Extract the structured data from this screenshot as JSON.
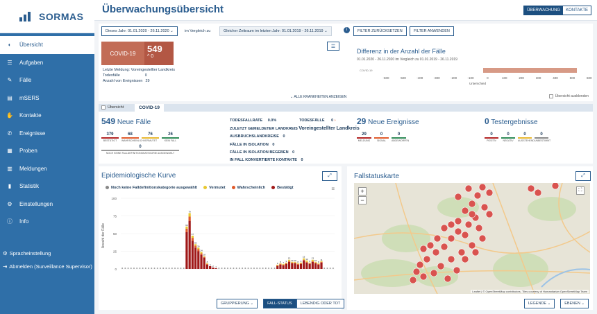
{
  "app": {
    "name": "SORMAS"
  },
  "header": {
    "title": "Überwachungsübersicht",
    "toggle_surveillance": "ÜBERWACHUNG",
    "toggle_contacts": "KONTAKTE"
  },
  "sidebar": {
    "items": [
      {
        "label": "Übersicht",
        "icon": "speedometer-icon"
      },
      {
        "label": "Aufgaben",
        "icon": "list-icon"
      },
      {
        "label": "Fälle",
        "icon": "edit-icon"
      },
      {
        "label": "mSERS",
        "icon": "document-icon"
      },
      {
        "label": "Kontakte",
        "icon": "hand-icon"
      },
      {
        "label": "Ereignisse",
        "icon": "phone-icon"
      },
      {
        "label": "Proben",
        "icon": "database-icon"
      },
      {
        "label": "Meldungen",
        "icon": "file-icon"
      },
      {
        "label": "Statistik",
        "icon": "bar-chart-icon"
      },
      {
        "label": "Einstellungen",
        "icon": "gears-icon"
      },
      {
        "label": "Info",
        "icon": "info-icon"
      }
    ],
    "language": "Spracheinstellung",
    "logout": "Abmelden (Surveillance Supervisor)"
  },
  "filters": {
    "period": "Dieses Jahr: 01.01.2020 - 26.11.2020",
    "compare_label": "im Vergleich zu",
    "compare_period": "Gleicher Zeitraum im letzten Jahr: 01.01.2019 - 26.11.2019",
    "reset": "FILTER ZURÜCKSETZEN",
    "apply": "FILTER ANWENDEN"
  },
  "covid_card": {
    "label": "COVID-19",
    "count": "549",
    "change": "^ 0",
    "last_report_label": "Letzte Meldung: Voreingestellter Landkreis",
    "deaths_label": "Todesfälle",
    "deaths": "0",
    "events_label": "Anzahl von Ereignissen",
    "events": "29"
  },
  "difference": {
    "title": "Differenz in der Anzahl der Fälle",
    "subtitle": "01.01.2020 - 26.11.2020 im Vergleich zu 01.01.2019 - 26.11.2019",
    "row_label": "COVID-19",
    "axis_label": "Unterschied",
    "ticks": [
      "-600",
      "-500",
      "-400",
      "-300",
      "-200",
      "-100",
      "0",
      "100",
      "200",
      "300",
      "400",
      "500",
      "600"
    ],
    "value": 549,
    "hide_label": "Übersicht ausblenden"
  },
  "show_more": "ALLE KRANKHEITEN ANZEIGEN",
  "tabs": {
    "disease_label": "Übersicht",
    "active": "COVID-19"
  },
  "stats": {
    "new_cases": {
      "count": "549",
      "label": "Neue Fälle",
      "items": [
        {
          "v": "379",
          "l": "BESTÄTIGT",
          "c": "#b22222"
        },
        {
          "v": "68",
          "l": "WAHRSCHEINLICH",
          "c": "#e05a2a"
        },
        {
          "v": "76",
          "l": "VERMUTET",
          "c": "#e8b830"
        },
        {
          "v": "26",
          "l": "KEIN FALL",
          "c": "#2e8b57"
        }
      ],
      "extra": {
        "v": "0",
        "l": "NOCH KEINE FALLDEFINITIONSKATEGORIE AUSGEWÄHLT"
      }
    },
    "fatality_label": "TODESFALLRATE",
    "fatality": "0.0%",
    "deaths_label": "TODESFÄLLE",
    "deaths": "0",
    "last_district_label": "ZULETZT GEMELDETER LANDKREIS",
    "last_district": "Voreingestellter Landkreis",
    "outbreak_label": "AUSBRUCHSLANDKREISE",
    "outbreak": "0",
    "isolation_label": "FÄLLE IN ISOLATION",
    "isolation": "0",
    "iso_ended_label": "FÄLLE IN ISOLATION BEGEBEN",
    "iso_ended": "0",
    "converted_label": "IN FALL KONVERTIERTE KONTAKTE",
    "converted": "0",
    "new_events": {
      "count": "29",
      "label": "Neue Ereignisse",
      "items": [
        {
          "v": "29",
          "l": "MELDUNG",
          "c": "#b22222"
        },
        {
          "v": "0",
          "l": "SIGNAL",
          "c": "#e05a2a"
        },
        {
          "v": "0",
          "l": "ABGEWORFEN",
          "c": "#2e8b57"
        }
      ]
    },
    "tests": {
      "count": "0",
      "label": "Testergebnisse",
      "items": [
        {
          "v": "0",
          "l": "POSITIV",
          "c": "#b22222"
        },
        {
          "v": "0",
          "l": "NEGATIV",
          "c": "#2e8b57"
        },
        {
          "v": "0",
          "l": "AUSSTEHEND",
          "c": "#e8b830"
        },
        {
          "v": "0",
          "l": "UNBESTIMMT",
          "c": "#888888"
        }
      ]
    }
  },
  "epi": {
    "title": "Epidemiologische Kurve",
    "legend": [
      {
        "label": "Noch keine Falldefinitionskategorie ausgewählt",
        "color": "#888888"
      },
      {
        "label": "Vermutet",
        "color": "#e8c830"
      },
      {
        "label": "Wahrscheinlich",
        "color": "#e05a2a"
      },
      {
        "label": "Bestätigt",
        "color": "#a01818"
      }
    ],
    "grouping": "GRUPPIERUNG",
    "btn_status": "FALL-STATUS",
    "btn_alive": "LEBENDIG ODER TOT"
  },
  "map": {
    "title": "Fallstatuskarte",
    "attribution": "Leaflet | © OpenStreetMap contributors, Tiles courtesy of Humanitarian OpenStreetMap Team",
    "legend_btn": "LEGENDE",
    "levels_btn": "EBENEN"
  },
  "chart_data": {
    "type": "bar",
    "title": "Epidemiologische Kurve",
    "ylabel": "Anzahl der Fälle",
    "ylim": [
      0,
      100
    ],
    "y_ticks": [
      "0",
      "25",
      "50",
      "75",
      "100"
    ],
    "series": [
      {
        "name": "Bestätigt",
        "values": [
          0,
          0,
          0,
          0,
          0,
          0,
          0,
          0,
          0,
          0,
          0,
          0,
          0,
          0,
          0,
          0,
          0,
          0,
          0,
          0,
          0,
          0,
          52,
          68,
          40,
          30,
          25,
          20,
          16,
          6,
          4,
          2,
          1,
          0,
          0,
          0,
          0,
          0,
          0,
          0,
          0,
          0,
          0,
          0,
          0,
          0,
          0,
          0,
          0,
          0,
          0,
          0,
          0,
          4,
          6,
          5,
          7,
          10,
          8,
          8,
          6,
          7,
          12,
          9,
          7,
          10,
          8,
          6,
          9,
          0,
          0,
          0,
          0
        ]
      },
      {
        "name": "Wahrscheinlich",
        "values": [
          0,
          0,
          0,
          0,
          0,
          0,
          0,
          0,
          0,
          0,
          0,
          0,
          0,
          0,
          0,
          0,
          0,
          0,
          0,
          0,
          0,
          0,
          5,
          6,
          4,
          3,
          3,
          2,
          1,
          1,
          0,
          0,
          0,
          0,
          0,
          0,
          0,
          0,
          0,
          0,
          0,
          0,
          0,
          0,
          0,
          0,
          0,
          0,
          0,
          0,
          0,
          0,
          0,
          1,
          1,
          1,
          1,
          1,
          1,
          1,
          1,
          1,
          1,
          1,
          1,
          1,
          1,
          1,
          1,
          0,
          0,
          0,
          0
        ]
      },
      {
        "name": "Vermutet",
        "values": [
          0,
          0,
          0,
          0,
          0,
          0,
          0,
          0,
          0,
          0,
          0,
          0,
          0,
          0,
          0,
          0,
          0,
          0,
          0,
          0,
          0,
          0,
          3,
          5,
          3,
          2,
          2,
          2,
          1,
          1,
          0,
          0,
          0,
          0,
          0,
          0,
          0,
          0,
          0,
          0,
          0,
          0,
          0,
          0,
          0,
          0,
          0,
          0,
          0,
          0,
          0,
          0,
          0,
          1,
          1,
          1,
          1,
          2,
          1,
          1,
          1,
          1,
          2,
          2,
          1,
          2,
          1,
          1,
          1,
          0,
          0,
          0,
          0
        ]
      }
    ]
  }
}
